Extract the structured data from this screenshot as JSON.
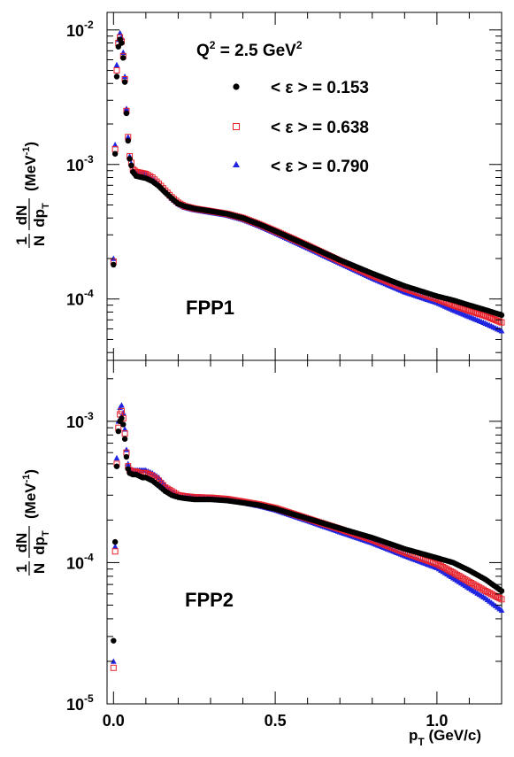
{
  "chart_data": [
    {
      "type": "scatter",
      "panel_label": "FPP1",
      "annotation": "Q² = 2.5 GeV²",
      "annotation_parts": {
        "q": "Q",
        "q_sup": "2",
        "eq": " = 2.5 GeV",
        "gev_sup": "2"
      },
      "ylabel": "1/N dN/dp_T (MeV⁻¹)",
      "ylabel_parts": {
        "one": "1",
        "N": "N",
        "dN": "dN",
        "dp": "dp",
        "T": "T",
        "unit": "(MeV",
        "unit_sup": "-1",
        "close": ")"
      },
      "xlabel": "",
      "y_scale": "log",
      "xlim": [
        -0.02,
        1.2
      ],
      "ylim": [
        3.5e-05,
        0.0135
      ],
      "y_ticks": [
        {
          "value": 0.01,
          "base": "10",
          "exp": "-2"
        },
        {
          "value": 0.001,
          "base": "10",
          "exp": "-3"
        },
        {
          "value": 0.0001,
          "base": "10",
          "exp": "-4"
        }
      ],
      "x_ticks": [],
      "legend": {
        "position": "top-right",
        "entries": [
          "< ε > = 0.153",
          "< ε > = 0.638",
          "< ε > = 0.790"
        ]
      },
      "series": [
        {
          "eps": "0.153",
          "color": "#000000",
          "marker": "circle",
          "x": [
            0.0,
            0.005,
            0.01,
            0.015,
            0.02,
            0.025,
            0.03,
            0.035,
            0.04,
            0.045,
            0.05,
            0.06,
            0.07,
            0.08,
            0.09,
            0.1,
            0.12,
            0.14,
            0.16,
            0.18,
            0.2,
            0.22,
            0.25,
            0.3,
            0.35,
            0.4,
            0.45,
            0.5,
            0.6,
            0.7,
            0.8,
            0.9,
            1.0,
            1.05,
            1.1,
            1.15,
            1.2
          ],
          "y": [
            0.00018,
            0.0012,
            0.0045,
            0.0075,
            0.0085,
            0.008,
            0.0062,
            0.0041,
            0.0024,
            0.0015,
            0.0011,
            0.00088,
            0.00082,
            0.00081,
            0.0008,
            0.00079,
            0.00075,
            0.00069,
            0.00062,
            0.00056,
            0.00051,
            0.00049,
            0.00047,
            0.00045,
            0.00043,
            0.0004,
            0.00036,
            0.00032,
            0.00025,
            0.000195,
            0.000155,
            0.000125,
            0.000105,
            9.8e-05,
            9e-05,
            8.3e-05,
            7.6e-05
          ]
        },
        {
          "eps": "0.638",
          "color": "#e8202a",
          "marker": "open-square",
          "x": [
            0.0,
            0.005,
            0.01,
            0.015,
            0.02,
            0.025,
            0.03,
            0.035,
            0.04,
            0.045,
            0.05,
            0.06,
            0.07,
            0.08,
            0.09,
            0.1,
            0.12,
            0.14,
            0.16,
            0.18,
            0.2,
            0.22,
            0.25,
            0.3,
            0.35,
            0.4,
            0.45,
            0.5,
            0.6,
            0.7,
            0.8,
            0.9,
            1.0,
            1.05,
            1.1,
            1.15,
            1.2
          ],
          "y": [
            0.00019,
            0.0013,
            0.005,
            0.008,
            0.0088,
            0.0082,
            0.0064,
            0.0043,
            0.0025,
            0.0016,
            0.00115,
            0.00092,
            0.00088,
            0.00087,
            0.00086,
            0.00085,
            0.0008,
            0.00072,
            0.00064,
            0.00057,
            0.00052,
            0.00049,
            0.00047,
            0.00045,
            0.00043,
            0.0004,
            0.00036,
            0.00032,
            0.00025,
            0.000192,
            0.00015,
            0.00012,
            0.0001,
            9e-05,
            8.2e-05,
            7.5e-05,
            6.7e-05
          ]
        },
        {
          "eps": "0.790",
          "color": "#1f25e0",
          "marker": "triangle",
          "x": [
            0.0,
            0.005,
            0.01,
            0.015,
            0.02,
            0.025,
            0.03,
            0.035,
            0.04,
            0.045,
            0.05,
            0.06,
            0.07,
            0.08,
            0.09,
            0.1,
            0.12,
            0.14,
            0.16,
            0.18,
            0.2,
            0.22,
            0.25,
            0.3,
            0.35,
            0.4,
            0.45,
            0.5,
            0.6,
            0.7,
            0.8,
            0.9,
            1.0,
            1.05,
            1.1,
            1.15,
            1.2
          ],
          "y": [
            0.0002,
            0.0014,
            0.0055,
            0.0085,
            0.0095,
            0.0088,
            0.0068,
            0.0045,
            0.0026,
            0.0016,
            0.00115,
            0.0009,
            0.00086,
            0.00085,
            0.00085,
            0.00084,
            0.00079,
            0.00071,
            0.00063,
            0.00056,
            0.00051,
            0.00048,
            0.00046,
            0.00044,
            0.00042,
            0.00039,
            0.00035,
            0.00031,
            0.00024,
            0.000185,
            0.000143,
            0.000113,
            9.4e-05,
            8.3e-05,
            7.4e-05,
            6.6e-05,
            5.8e-05
          ]
        }
      ]
    },
    {
      "type": "scatter",
      "panel_label": "FPP2",
      "ylabel": "1/N dN/dp_T (MeV⁻¹)",
      "ylabel_parts": {
        "one": "1",
        "N": "N",
        "dN": "dN",
        "dp": "dp",
        "T": "T",
        "unit": "(MeV",
        "unit_sup": "-1",
        "close": ")"
      },
      "xlabel": "p_T (GeV/c)",
      "xlabel_parts": {
        "p": "p",
        "T": "T",
        "unit": " (GeV/c)"
      },
      "y_scale": "log",
      "xlim": [
        -0.02,
        1.2
      ],
      "ylim": [
        1e-05,
        0.0027
      ],
      "y_ticks": [
        {
          "value": 0.001,
          "base": "10",
          "exp": "-3"
        },
        {
          "value": 0.0001,
          "base": "10",
          "exp": "-4"
        },
        {
          "value": 1e-05,
          "base": "10",
          "exp": "-5"
        }
      ],
      "x_ticks": [
        {
          "value": 0.0,
          "label": "0.0"
        },
        {
          "value": 0.5,
          "label": "0.5"
        },
        {
          "value": 1.0,
          "label": "1.0"
        }
      ],
      "series": [
        {
          "eps": "0.153",
          "color": "#000000",
          "marker": "circle",
          "x": [
            0.0,
            0.005,
            0.01,
            0.015,
            0.02,
            0.025,
            0.03,
            0.035,
            0.04,
            0.045,
            0.05,
            0.06,
            0.07,
            0.08,
            0.09,
            0.1,
            0.12,
            0.14,
            0.16,
            0.18,
            0.2,
            0.22,
            0.25,
            0.3,
            0.35,
            0.4,
            0.45,
            0.5,
            0.6,
            0.7,
            0.8,
            0.9,
            1.0,
            1.05,
            1.1,
            1.15,
            1.2
          ],
          "y": [
            2.8e-05,
            0.00014,
            0.00048,
            0.00085,
            0.001,
            0.00105,
            0.00095,
            0.00075,
            0.00056,
            0.00046,
            0.00043,
            0.00042,
            0.00042,
            0.00041,
            0.0004,
            0.0004,
            0.00038,
            0.00035,
            0.00032,
            0.0003,
            0.00029,
            0.000285,
            0.00028,
            0.00028,
            0.000275,
            0.000265,
            0.000255,
            0.00024,
            0.000205,
            0.000175,
            0.00015,
            0.000125,
            0.000108,
            0.0001,
            8.8e-05,
            7.6e-05,
            6.3e-05
          ]
        },
        {
          "eps": "0.638",
          "color": "#e8202a",
          "marker": "open-square",
          "x": [
            0.0,
            0.005,
            0.01,
            0.015,
            0.02,
            0.025,
            0.03,
            0.035,
            0.04,
            0.045,
            0.05,
            0.06,
            0.07,
            0.08,
            0.09,
            0.1,
            0.12,
            0.14,
            0.16,
            0.18,
            0.2,
            0.22,
            0.25,
            0.3,
            0.35,
            0.4,
            0.45,
            0.5,
            0.6,
            0.7,
            0.8,
            0.9,
            1.0,
            1.05,
            1.1,
            1.15,
            1.2
          ],
          "y": [
            1.8e-05,
            0.00012,
            0.0005,
            0.0009,
            0.00112,
            0.00118,
            0.00105,
            0.00082,
            0.0006,
            0.00048,
            0.00045,
            0.00044,
            0.00044,
            0.00043,
            0.00043,
            0.00043,
            0.00041,
            0.00038,
            0.00034,
            0.00032,
            0.0003,
            0.000295,
            0.00029,
            0.000288,
            0.000282,
            0.00027,
            0.000258,
            0.000243,
            0.000205,
            0.000173,
            0.000145,
            0.000118,
            9.8e-05,
            8.5e-05,
            7.3e-05,
            6.3e-05,
            5.5e-05
          ]
        },
        {
          "eps": "0.790",
          "color": "#1f25e0",
          "marker": "triangle",
          "x": [
            0.0,
            0.005,
            0.01,
            0.015,
            0.02,
            0.025,
            0.03,
            0.035,
            0.04,
            0.045,
            0.05,
            0.06,
            0.07,
            0.08,
            0.09,
            0.1,
            0.12,
            0.14,
            0.16,
            0.18,
            0.2,
            0.22,
            0.25,
            0.3,
            0.35,
            0.4,
            0.45,
            0.5,
            0.6,
            0.7,
            0.8,
            0.9,
            1.0,
            1.05,
            1.1,
            1.15,
            1.2
          ],
          "y": [
            2e-05,
            0.00013,
            0.00055,
            0.001,
            0.00125,
            0.0013,
            0.00115,
            0.00088,
            0.00063,
            0.0005,
            0.00046,
            0.00045,
            0.00045,
            0.00045,
            0.00045,
            0.00045,
            0.00043,
            0.0004,
            0.00035,
            0.00032,
            0.0003,
            0.000292,
            0.000288,
            0.000285,
            0.000278,
            0.000266,
            0.000252,
            0.000236,
            0.000198,
            0.000165,
            0.000138,
            0.000112,
            9.2e-05,
            7.8e-05,
            6.6e-05,
            5.6e-05,
            4.6e-05
          ]
        }
      ]
    }
  ]
}
